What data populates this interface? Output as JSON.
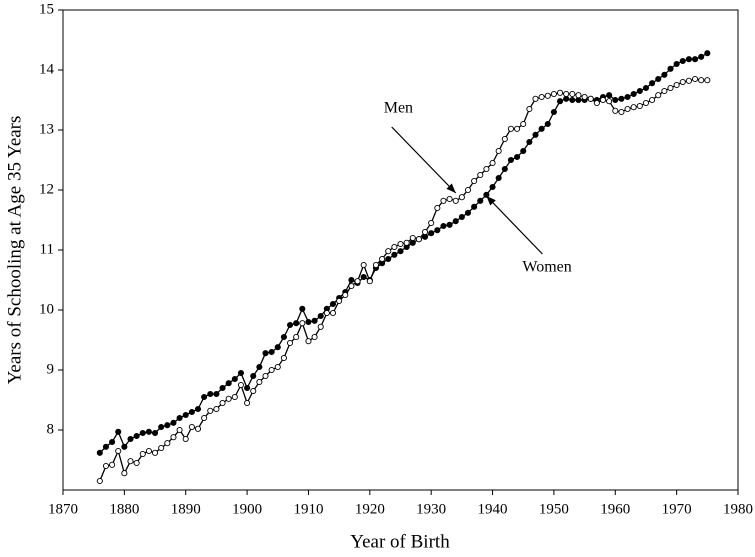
{
  "chart_data": {
    "type": "line",
    "xlabel": "Year of Birth",
    "ylabel": "Years of Schooling at Age 35 Years",
    "x": [
      1876,
      1877,
      1878,
      1879,
      1880,
      1881,
      1882,
      1883,
      1884,
      1885,
      1886,
      1887,
      1888,
      1889,
      1890,
      1891,
      1892,
      1893,
      1894,
      1895,
      1896,
      1897,
      1898,
      1899,
      1900,
      1901,
      1902,
      1903,
      1904,
      1905,
      1906,
      1907,
      1908,
      1909,
      1910,
      1911,
      1912,
      1913,
      1914,
      1915,
      1916,
      1917,
      1918,
      1919,
      1920,
      1921,
      1922,
      1923,
      1924,
      1925,
      1926,
      1927,
      1928,
      1929,
      1930,
      1931,
      1932,
      1933,
      1934,
      1935,
      1936,
      1937,
      1938,
      1939,
      1940,
      1941,
      1942,
      1943,
      1944,
      1945,
      1946,
      1947,
      1948,
      1949,
      1950,
      1951,
      1952,
      1953,
      1954,
      1955,
      1956,
      1957,
      1958,
      1959,
      1960,
      1961,
      1962,
      1963,
      1964,
      1965,
      1966,
      1967,
      1968,
      1969,
      1970,
      1971,
      1972,
      1973,
      1974,
      1975
    ],
    "series": [
      {
        "name": "Women",
        "color": "#000000",
        "marker_fill": "#000000",
        "values": [
          7.62,
          7.72,
          7.8,
          7.97,
          7.72,
          7.85,
          7.9,
          7.95,
          7.97,
          7.95,
          8.05,
          8.08,
          8.12,
          8.2,
          8.25,
          8.3,
          8.35,
          8.55,
          8.6,
          8.6,
          8.7,
          8.78,
          8.85,
          8.95,
          8.7,
          8.9,
          9.05,
          9.28,
          9.3,
          9.38,
          9.55,
          9.75,
          9.78,
          10.02,
          9.8,
          9.82,
          9.9,
          10.02,
          10.1,
          10.2,
          10.3,
          10.5,
          10.45,
          10.55,
          10.5,
          10.7,
          10.78,
          10.85,
          10.92,
          10.98,
          11.05,
          11.12,
          11.18,
          11.22,
          11.28,
          11.33,
          11.4,
          11.42,
          11.48,
          11.55,
          11.62,
          11.72,
          11.82,
          11.92,
          12.05,
          12.2,
          12.35,
          12.5,
          12.55,
          12.65,
          12.8,
          12.92,
          13.02,
          13.1,
          13.3,
          13.48,
          13.52,
          13.5,
          13.5,
          13.5,
          13.52,
          13.5,
          13.55,
          13.58,
          13.5,
          13.52,
          13.55,
          13.6,
          13.65,
          13.7,
          13.78,
          13.85,
          13.92,
          14.02,
          14.1,
          14.15,
          14.18,
          14.18,
          14.22,
          14.28
        ]
      },
      {
        "name": "Men",
        "color": "#000000",
        "marker_fill": "#ffffff",
        "values": [
          7.15,
          7.4,
          7.42,
          7.65,
          7.28,
          7.48,
          7.45,
          7.6,
          7.65,
          7.62,
          7.7,
          7.78,
          7.88,
          8.0,
          7.85,
          8.05,
          8.02,
          8.2,
          8.32,
          8.35,
          8.45,
          8.52,
          8.55,
          8.75,
          8.45,
          8.65,
          8.8,
          8.9,
          9.0,
          9.05,
          9.2,
          9.45,
          9.55,
          9.78,
          9.48,
          9.55,
          9.72,
          9.95,
          9.95,
          10.15,
          10.25,
          10.4,
          10.48,
          10.75,
          10.48,
          10.75,
          10.85,
          10.98,
          11.05,
          11.1,
          11.12,
          11.2,
          11.18,
          11.3,
          11.45,
          11.7,
          11.82,
          11.85,
          11.82,
          11.88,
          12.0,
          12.15,
          12.25,
          12.35,
          12.45,
          12.65,
          12.85,
          13.02,
          13.02,
          13.1,
          13.35,
          13.52,
          13.55,
          13.57,
          13.6,
          13.62,
          13.6,
          13.6,
          13.58,
          13.55,
          13.52,
          13.45,
          13.5,
          13.48,
          13.32,
          13.3,
          13.35,
          13.38,
          13.4,
          13.45,
          13.5,
          13.58,
          13.65,
          13.7,
          13.75,
          13.8,
          13.82,
          13.85,
          13.83,
          13.83
        ]
      }
    ],
    "annotations": [
      {
        "text": "Men",
        "x": 1934,
        "y": 11.95
      },
      {
        "text": "Women",
        "x": 1939,
        "y": 11.9
      }
    ],
    "xlim": [
      1870,
      1980
    ],
    "xticks": [
      1870,
      1880,
      1890,
      1900,
      1910,
      1920,
      1930,
      1940,
      1950,
      1960,
      1970,
      1980
    ],
    "ylim": [
      7,
      15
    ],
    "yticks": [
      8,
      9,
      10,
      11,
      12,
      13,
      14,
      15
    ],
    "grid": false
  }
}
